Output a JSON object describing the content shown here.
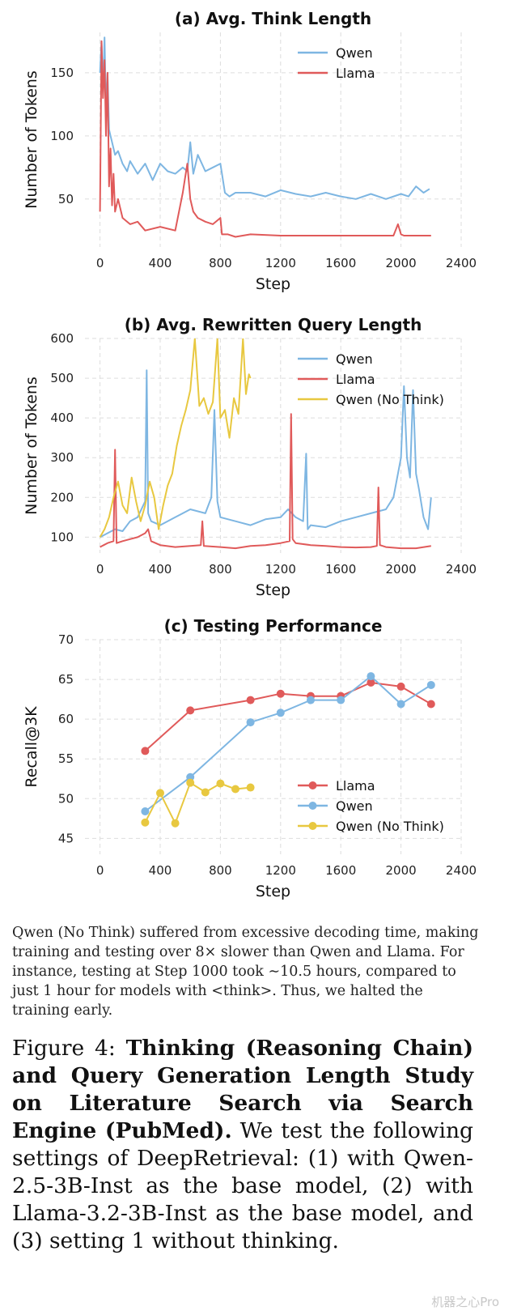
{
  "chart_data": [
    {
      "type": "line",
      "title": "(a) Avg. Think Length",
      "xlabel": "Step",
      "ylabel": "Number of Tokens",
      "xlim": [
        -100,
        2400
      ],
      "ylim": [
        12,
        182
      ],
      "xticks": [
        0,
        400,
        800,
        1200,
        1600,
        2000,
        2400
      ],
      "yticks": [
        50,
        100,
        150
      ],
      "grid": true,
      "legend": "top-right",
      "series": [
        {
          "name": "Qwen",
          "color": "#7eb6e2",
          "x": [
            0,
            10,
            20,
            30,
            40,
            50,
            60,
            70,
            80,
            100,
            120,
            150,
            180,
            200,
            250,
            300,
            350,
            400,
            450,
            500,
            550,
            580,
            600,
            620,
            650,
            700,
            750,
            800,
            830,
            860,
            900,
            1000,
            1100,
            1200,
            1300,
            1400,
            1500,
            1600,
            1700,
            1800,
            1900,
            2000,
            2050,
            2100,
            2150,
            2190
          ],
          "y": [
            150,
            175,
            135,
            178,
            120,
            150,
            105,
            100,
            95,
            85,
            88,
            78,
            72,
            80,
            70,
            78,
            65,
            78,
            72,
            70,
            75,
            72,
            95,
            70,
            85,
            72,
            75,
            78,
            55,
            52,
            55,
            55,
            52,
            57,
            54,
            52,
            55,
            52,
            50,
            54,
            50,
            54,
            52,
            60,
            55,
            58
          ]
        },
        {
          "name": "Llama",
          "color": "#e05a5a",
          "x": [
            0,
            10,
            20,
            30,
            40,
            50,
            60,
            70,
            80,
            90,
            100,
            120,
            150,
            200,
            250,
            300,
            400,
            500,
            550,
            580,
            600,
            620,
            650,
            700,
            750,
            800,
            810,
            850,
            900,
            1000,
            1200,
            1400,
            1600,
            1800,
            1950,
            1980,
            2000,
            2020,
            2200
          ],
          "y": [
            40,
            175,
            130,
            160,
            100,
            150,
            60,
            90,
            45,
            70,
            40,
            50,
            35,
            30,
            32,
            25,
            28,
            25,
            55,
            78,
            50,
            40,
            35,
            32,
            30,
            35,
            22,
            22,
            20,
            22,
            21,
            21,
            21,
            21,
            21,
            30,
            22,
            21,
            21
          ]
        }
      ]
    },
    {
      "type": "line",
      "title": "(b) Avg. Rewritten Query Length",
      "xlabel": "Step",
      "ylabel": "Number of Tokens",
      "xlim": [
        -100,
        2400
      ],
      "ylim": [
        60,
        600
      ],
      "xticks": [
        0,
        400,
        800,
        1200,
        1600,
        2000,
        2400
      ],
      "yticks": [
        100,
        200,
        300,
        400,
        500,
        600
      ],
      "grid": true,
      "legend": "top-right",
      "series": [
        {
          "name": "Qwen",
          "color": "#7eb6e2",
          "x": [
            0,
            50,
            100,
            150,
            200,
            250,
            300,
            310,
            320,
            340,
            400,
            500,
            600,
            700,
            740,
            760,
            780,
            800,
            900,
            1000,
            1100,
            1200,
            1250,
            1300,
            1350,
            1370,
            1380,
            1400,
            1500,
            1600,
            1700,
            1800,
            1900,
            1950,
            2000,
            2020,
            2040,
            2060,
            2080,
            2100,
            2120,
            2150,
            2180,
            2200
          ],
          "y": [
            100,
            110,
            120,
            115,
            140,
            150,
            190,
            520,
            160,
            140,
            130,
            150,
            170,
            160,
            200,
            420,
            190,
            150,
            140,
            130,
            145,
            150,
            170,
            150,
            140,
            310,
            120,
            130,
            125,
            140,
            150,
            160,
            170,
            200,
            300,
            480,
            300,
            250,
            470,
            260,
            220,
            150,
            120,
            200
          ]
        },
        {
          "name": "Llama",
          "color": "#e05a5a",
          "x": [
            0,
            50,
            90,
            100,
            110,
            150,
            200,
            250,
            300,
            320,
            340,
            400,
            500,
            600,
            670,
            680,
            690,
            800,
            900,
            1000,
            1100,
            1200,
            1260,
            1270,
            1280,
            1300,
            1400,
            1500,
            1600,
            1700,
            1800,
            1840,
            1850,
            1860,
            1900,
            2000,
            2100,
            2200
          ],
          "y": [
            75,
            85,
            90,
            320,
            85,
            90,
            95,
            100,
            110,
            120,
            90,
            80,
            75,
            78,
            80,
            140,
            78,
            75,
            72,
            78,
            80,
            85,
            90,
            410,
            95,
            85,
            80,
            78,
            75,
            74,
            75,
            78,
            225,
            80,
            75,
            72,
            72,
            78
          ]
        },
        {
          "name": "Qwen (No Think)",
          "color": "#e8c840",
          "x": [
            0,
            30,
            60,
            90,
            120,
            150,
            180,
            210,
            240,
            270,
            300,
            330,
            360,
            390,
            420,
            450,
            480,
            510,
            540,
            570,
            600,
            630,
            660,
            690,
            720,
            750,
            780,
            800,
            830,
            860,
            890,
            920,
            950,
            970,
            990,
            1000
          ],
          "y": [
            100,
            120,
            150,
            200,
            240,
            180,
            160,
            250,
            190,
            140,
            180,
            240,
            200,
            120,
            180,
            230,
            260,
            330,
            380,
            420,
            470,
            600,
            430,
            450,
            410,
            440,
            600,
            400,
            420,
            350,
            450,
            410,
            600,
            460,
            510,
            500
          ]
        }
      ]
    },
    {
      "type": "line",
      "title": "(c) Testing Performance",
      "xlabel": "Step",
      "ylabel": "Recall@3K",
      "xlim": [
        -100,
        2400
      ],
      "ylim": [
        43,
        70
      ],
      "xticks": [
        0,
        400,
        800,
        1200,
        1600,
        2000,
        2400
      ],
      "yticks": [
        45,
        50,
        55,
        60,
        65,
        70
      ],
      "grid": true,
      "legend": "bottom-right",
      "series": [
        {
          "name": "Llama",
          "color": "#e05a5a",
          "x": [
            300,
            600,
            1000,
            1200,
            1400,
            1600,
            1800,
            2000,
            2200
          ],
          "y": [
            56.0,
            61.1,
            62.4,
            63.2,
            62.9,
            62.9,
            64.6,
            64.1,
            61.9
          ]
        },
        {
          "name": "Qwen",
          "color": "#7eb6e2",
          "x": [
            300,
            600,
            1000,
            1200,
            1400,
            1600,
            1800,
            2000,
            2200
          ],
          "y": [
            48.4,
            52.7,
            59.6,
            60.8,
            62.4,
            62.4,
            65.4,
            61.9,
            64.3
          ]
        },
        {
          "name": "Qwen (No Think)",
          "color": "#e8c840",
          "x": [
            300,
            400,
            500,
            600,
            700,
            800,
            900,
            1000
          ],
          "y": [
            47.0,
            50.7,
            46.9,
            52.0,
            50.8,
            51.9,
            51.2,
            51.4
          ]
        }
      ]
    }
  ],
  "note": "Qwen (No Think) suffered from excessive decoding time, making training and testing over 8× slower than Qwen and Llama. For instance, testing at Step 1000 took ∼10.5 hours, compared to just 1 hour for models with <think>. Thus, we halted the training early.",
  "caption": {
    "prefix": "Figure 4: ",
    "bold": "Thinking (Reasoning Chain) and Query Generation Length Study on Literature Search via Search Engine (PubMed).",
    "rest": " We test the following settings of DeepRetrieval: (1) with Qwen-2.5-3B-Inst as the base model, (2) with Llama-3.2-3B-Inst as the base model, and (3) setting 1 without thinking."
  },
  "watermark": "机器之心Pro"
}
